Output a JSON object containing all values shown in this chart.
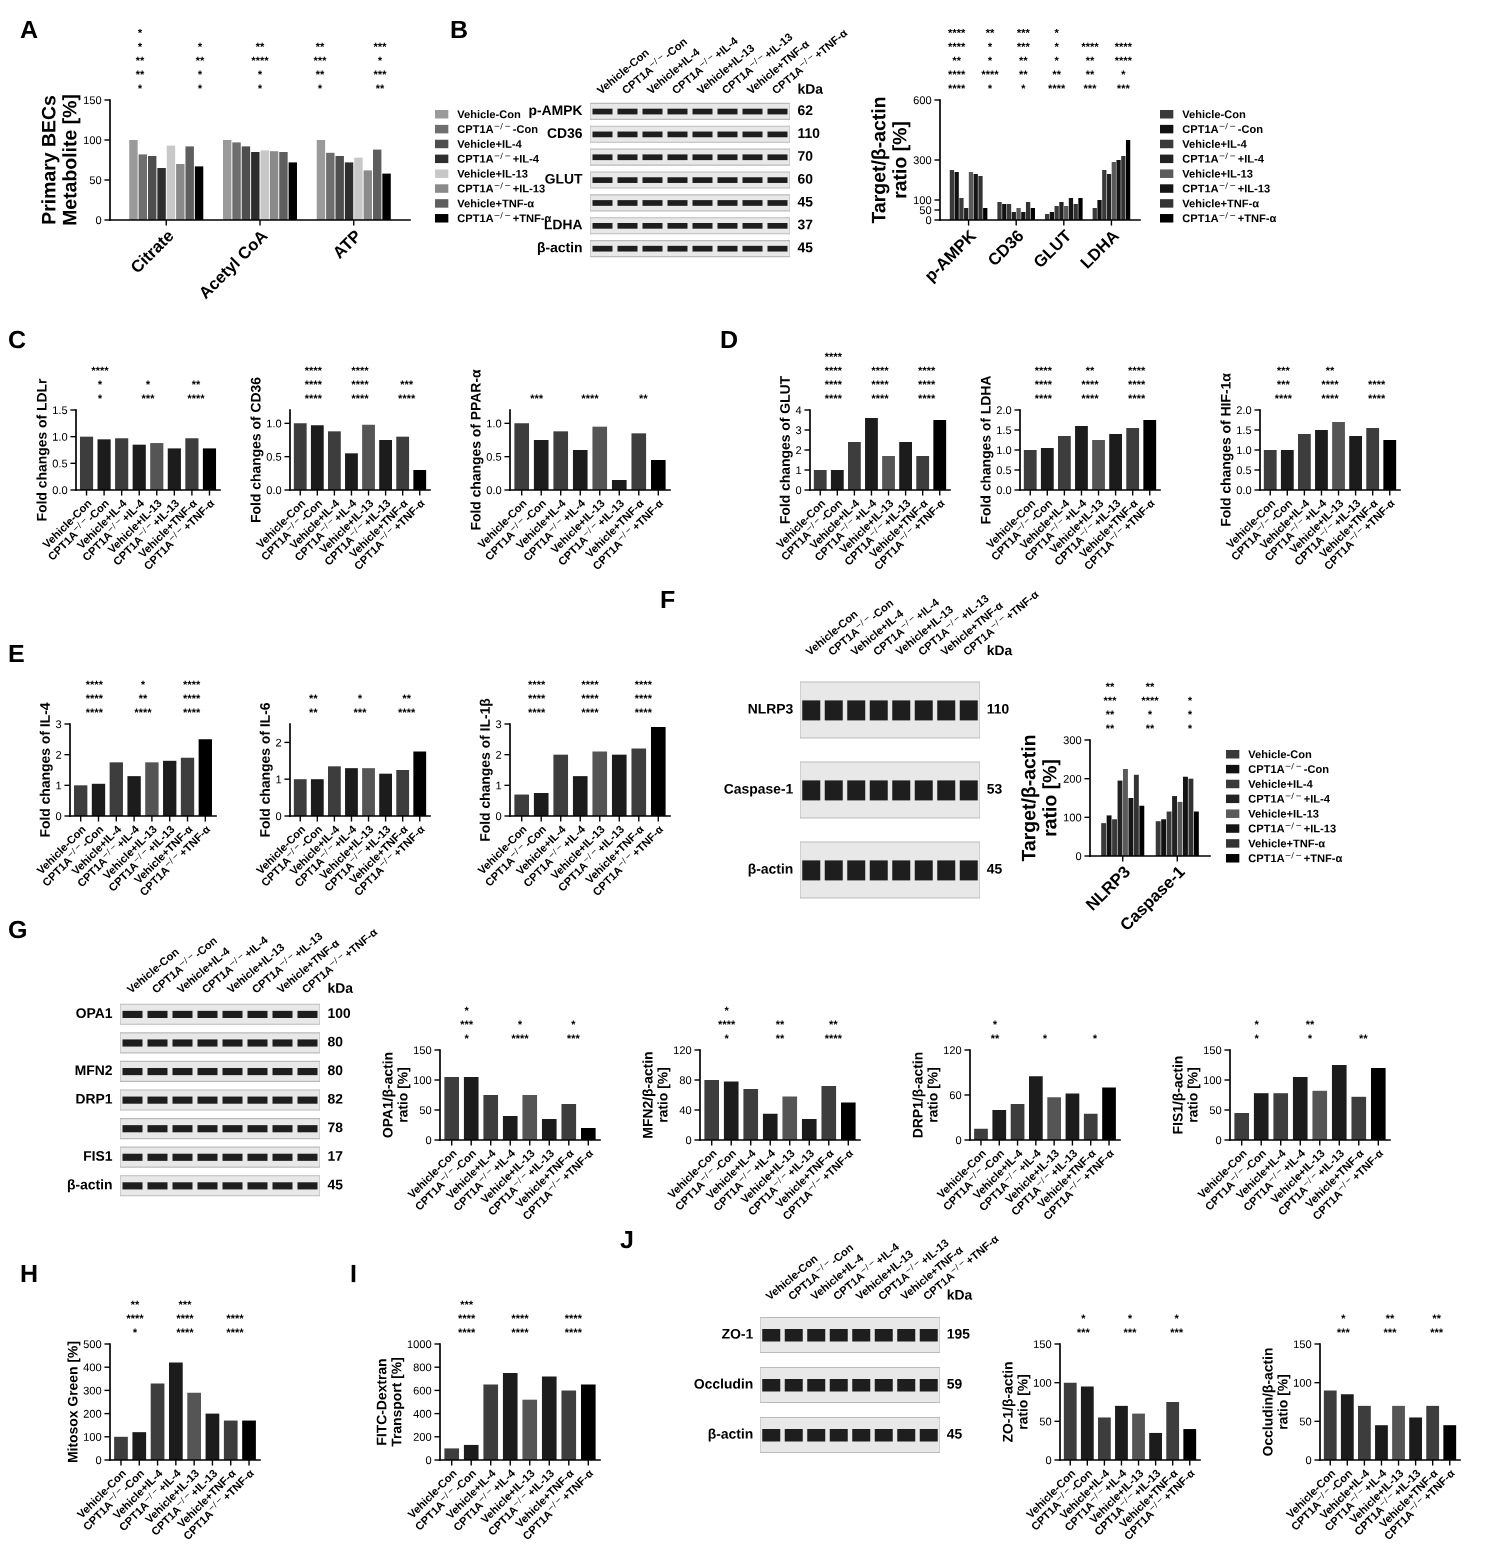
{
  "chart_data": [
    {
      "type": "bar",
      "title": "A",
      "ylabel": "Primary BECs\nMetabolite [%]",
      "categories": [
        "Citrate",
        "Acetyl CoA",
        "ATP"
      ],
      "ylim": [
        0,
        150
      ],
      "yticks": [
        0,
        50,
        100,
        150
      ],
      "legend": "right",
      "annotations": [
        "*",
        "*",
        "*",
        "*",
        "**",
        "**",
        "*",
        "*",
        "**",
        "***",
        "**",
        "**",
        "****",
        "***",
        "*",
        "*",
        "*",
        "**",
        "**",
        "***",
        "*"
      ],
      "series": [
        {
          "name": "Vehicle-Con",
          "color": "#9a9a9a",
          "values": [
            100,
            100,
            100
          ]
        },
        {
          "name": "CPT1A$^{−/−}$-Con",
          "color": "#6e6e6e",
          "values": [
            82,
            97,
            84
          ]
        },
        {
          "name": "Vehicle+IL-4",
          "color": "#4e4e4e",
          "values": [
            80,
            92,
            80
          ]
        },
        {
          "name": "CPT1A$^{−/−}$+IL-4",
          "color": "#2e2e2e",
          "values": [
            65,
            85,
            72
          ]
        },
        {
          "name": "Vehicle+IL-13",
          "color": "#c8c8c8",
          "values": [
            93,
            87,
            78
          ]
        },
        {
          "name": "CPT1A$^{−/−}$+IL-13",
          "color": "#8a8a8a",
          "values": [
            70,
            86,
            62
          ]
        },
        {
          "name": "Vehicle+TNF-α",
          "color": "#5e5e5e",
          "values": [
            92,
            85,
            88
          ]
        },
        {
          "name": "CPT1A$^{−/−}$+TNF-α",
          "color": "#000000",
          "values": [
            67,
            72,
            58
          ]
        }
      ]
    },
    {
      "type": "other",
      "title": "B",
      "categories": [
        "Vehicle-Con",
        "CPT1A$^{−/−}$-Con",
        "Vehicle+IL-4",
        "CPT1A$^{−/−}$+IL-4",
        "Vehicle+IL-13",
        "CPT1A$^{−/−}$+IL-13",
        "Vehicle+TNF-α",
        "CPT1A$^{−/−}$+TNF-α"
      ],
      "y_categories": [
        "p-AMPK",
        "CD36",
        null,
        "GLUT",
        null,
        "LDHA",
        "β-actin"
      ],
      "y2_categories": [
        "62",
        "110",
        "70",
        "60",
        "45",
        "37",
        "45"
      ],
      "annotations": [
        "kDa"
      ]
    },
    {
      "type": "bar",
      "ylabel": "Target/β-actin\nratio [%]",
      "categories": [
        "p-AMPK",
        "CD36",
        "GLUT",
        "LDHA"
      ],
      "ylim": [
        0,
        600
      ],
      "yticks": [
        0,
        50,
        100,
        300,
        600
      ],
      "legend": "right",
      "annotations": [
        "****",
        "*",
        "*",
        "****",
        "***",
        "***",
        "****",
        "****",
        "**",
        "**",
        "**",
        "*",
        "**",
        "*",
        "**",
        "*",
        "**",
        "****",
        "****",
        "*",
        "***",
        "*",
        "****",
        "****",
        "****",
        "**",
        "***",
        "*"
      ],
      "series": [
        {
          "name": "Vehicle-Con",
          "color": "#3a3a3a",
          "values": [
            250,
            90,
            30,
            60
          ]
        },
        {
          "name": "CPT1A$^{−/−}$-Con",
          "color": "#111111",
          "values": [
            240,
            80,
            40,
            100
          ]
        },
        {
          "name": "Vehicle+IL-4",
          "color": "#3a3a3a",
          "values": [
            110,
            80,
            70,
            250
          ]
        },
        {
          "name": "CPT1A$^{−/−}$+IL-4",
          "color": "#222222",
          "values": [
            60,
            40,
            90,
            230
          ]
        },
        {
          "name": "Vehicle+IL-13",
          "color": "#5a5a5a",
          "values": [
            240,
            60,
            70,
            290
          ]
        },
        {
          "name": "CPT1A$^{−/−}$+IL-13",
          "color": "#151515",
          "values": [
            230,
            40,
            110,
            300
          ]
        },
        {
          "name": "Vehicle+TNF-α",
          "color": "#333333",
          "values": [
            220,
            90,
            80,
            320
          ]
        },
        {
          "name": "CPT1A$^{−/−}$+TNF-α",
          "color": "#000000",
          "values": [
            60,
            60,
            110,
            400
          ]
        }
      ]
    },
    {
      "type": "bar",
      "title": "C",
      "ylabel": "Fold changes of LDLr",
      "categories": [
        "Vehicle-Con",
        "CPT1A$^{−/−}$-Con",
        "Vehicle+IL-4",
        "CPT1A$^{−/−}$+IL-4",
        "Vehicle+IL-13",
        "CPT1A$^{−/−}$+IL-13",
        "Vehicle+TNF-α",
        "CPT1A$^{−/−}$+TNF-α"
      ],
      "ylim": [
        0,
        1.5
      ],
      "yticks": [
        {
          "value": 0,
          "label": "0.0"
        },
        0.5,
        {
          "value": 1,
          "label": "1.0"
        },
        1.5
      ],
      "values": [
        1.0,
        0.95,
        0.97,
        0.85,
        0.88,
        0.78,
        0.97,
        0.78
      ],
      "colors": [
        "#3d3d3d",
        "#1c1c1c",
        "#3d3d3d",
        "#1c1c1c",
        "#555555",
        "#1c1c1c",
        "#3d3d3d",
        "#000000"
      ],
      "annotations": [
        "*",
        "***",
        "****",
        "*",
        "*",
        "**",
        "****"
      ]
    },
    {
      "type": "bar",
      "ylabel": "Fold changes of CD36",
      "categories": [
        "Vehicle-Con",
        "CPT1A$^{−/−}$-Con",
        "Vehicle+IL-4",
        "CPT1A$^{−/−}$+IL-4",
        "Vehicle+IL-13",
        "CPT1A$^{−/−}$+IL-13",
        "Vehicle+TNF-α",
        "CPT1A$^{−/−}$+TNF-α"
      ],
      "ylim": [
        0,
        1.2
      ],
      "yticks": [
        {
          "value": 0,
          "label": "0.0"
        },
        0.5,
        {
          "value": 1,
          "label": "1.0"
        }
      ],
      "values": [
        1.0,
        0.97,
        0.88,
        0.55,
        0.98,
        0.75,
        0.8,
        0.3
      ],
      "colors": [
        "#3d3d3d",
        "#1c1c1c",
        "#3d3d3d",
        "#1c1c1c",
        "#555555",
        "#1c1c1c",
        "#3d3d3d",
        "#000000"
      ],
      "annotations": [
        "****",
        "****",
        "****",
        "****",
        "****",
        "***",
        "****",
        "****"
      ]
    },
    {
      "type": "bar",
      "ylabel": "Fold changes of PPAR-α",
      "categories": [
        "Vehicle-Con",
        "CPT1A$^{−/−}$-Con",
        "Vehicle+IL-4",
        "CPT1A$^{−/−}$+IL-4",
        "Vehicle+IL-13",
        "CPT1A$^{−/−}$+IL-13",
        "Vehicle+TNF-α",
        "CPT1A$^{−/−}$+TNF-α"
      ],
      "ylim": [
        0,
        1.2
      ],
      "yticks": [
        {
          "value": 0,
          "label": "0.0"
        },
        0.5,
        {
          "value": 1,
          "label": "1.0"
        }
      ],
      "values": [
        1.0,
        0.75,
        0.88,
        0.6,
        0.95,
        0.15,
        0.85,
        0.45
      ],
      "colors": [
        "#3d3d3d",
        "#1c1c1c",
        "#3d3d3d",
        "#1c1c1c",
        "#555555",
        "#1c1c1c",
        "#3d3d3d",
        "#000000"
      ],
      "annotations": [
        "***",
        "****",
        "**"
      ]
    },
    {
      "type": "bar",
      "title": "D",
      "ylabel": "Fold changes of GLUT",
      "categories": [
        "Vehicle-Con",
        "CPT1A$^{−/−}$-Con",
        "Vehicle+IL-4",
        "CPT1A$^{−/−}$+IL-4",
        "Vehicle+IL-13",
        "CPT1A$^{−/−}$+IL-13",
        "Vehicle+TNF-α",
        "CPT1A$^{−/−}$+TNF-α"
      ],
      "ylim": [
        0,
        4
      ],
      "yticks": [
        0,
        1,
        2,
        3,
        4
      ],
      "values": [
        1.0,
        1.0,
        2.4,
        3.6,
        1.7,
        2.4,
        1.7,
        3.5
      ],
      "colors": [
        "#3d3d3d",
        "#1c1c1c",
        "#3d3d3d",
        "#1c1c1c",
        "#555555",
        "#1c1c1c",
        "#3d3d3d",
        "#000000"
      ],
      "annotations": [
        "****",
        "****",
        "****",
        "****",
        "****",
        "****",
        "****",
        "****",
        "****",
        "****"
      ]
    },
    {
      "type": "bar",
      "ylabel": "Fold changes of LDHA",
      "categories": [
        "Vehicle-Con",
        "CPT1A$^{−/−}$-Con",
        "Vehicle+IL-4",
        "CPT1A$^{−/−}$+IL-4",
        "Vehicle+IL-13",
        "CPT1A$^{−/−}$+IL-13",
        "Vehicle+TNF-α",
        "CPT1A$^{−/−}$+TNF-α"
      ],
      "ylim": [
        0,
        2.0
      ],
      "yticks": [
        {
          "value": 0,
          "label": "0.0"
        },
        0.5,
        {
          "value": 1,
          "label": "1.0"
        },
        1.5,
        {
          "value": 2,
          "label": "2.0"
        }
      ],
      "values": [
        1.0,
        1.05,
        1.35,
        1.6,
        1.25,
        1.4,
        1.55,
        1.75
      ],
      "colors": [
        "#3d3d3d",
        "#1c1c1c",
        "#3d3d3d",
        "#1c1c1c",
        "#555555",
        "#1c1c1c",
        "#3d3d3d",
        "#000000"
      ],
      "annotations": [
        "****",
        "****",
        "****",
        "****",
        "****",
        "****",
        "****",
        "**",
        "****"
      ]
    },
    {
      "type": "bar",
      "ylabel": "Fold changes of HIF-1α",
      "categories": [
        "Vehicle-Con",
        "CPT1A$^{−/−}$-Con",
        "Vehicle+IL-4",
        "CPT1A$^{−/−}$+IL-4",
        "Vehicle+IL-13",
        "CPT1A$^{−/−}$+IL-13",
        "Vehicle+TNF-α",
        "CPT1A$^{−/−}$+TNF-α"
      ],
      "ylim": [
        0,
        2.0
      ],
      "yticks": [
        {
          "value": 0,
          "label": "0.0"
        },
        0.5,
        {
          "value": 1,
          "label": "1.0"
        },
        1.5,
        {
          "value": 2,
          "label": "2.0"
        }
      ],
      "values": [
        1.0,
        1.0,
        1.4,
        1.5,
        1.7,
        1.35,
        1.55,
        1.25
      ],
      "colors": [
        "#3d3d3d",
        "#1c1c1c",
        "#3d3d3d",
        "#1c1c1c",
        "#555555",
        "#1c1c1c",
        "#3d3d3d",
        "#000000"
      ],
      "annotations": [
        "****",
        "****",
        "****",
        "***",
        "****",
        "****",
        "***",
        "**"
      ]
    },
    {
      "type": "bar",
      "title": "E",
      "ylabel": "Fold changes of IL-4",
      "categories": [
        "Vehicle-Con",
        "CPT1A$^{−/−}$-Con",
        "Vehicle+IL-4",
        "CPT1A$^{−/−}$+IL-4",
        "Vehicle+IL-13",
        "CPT1A$^{−/−}$+IL-13",
        "Vehicle+TNF-α",
        "CPT1A$^{−/−}$+TNF-α"
      ],
      "ylim": [
        0,
        3
      ],
      "yticks": [
        0,
        1,
        2,
        3
      ],
      "values": [
        1.0,
        1.05,
        1.75,
        1.3,
        1.75,
        1.8,
        1.9,
        2.5
      ],
      "colors": [
        "#3d3d3d",
        "#1c1c1c",
        "#3d3d3d",
        "#1c1c1c",
        "#555555",
        "#1c1c1c",
        "#3d3d3d",
        "#000000"
      ],
      "annotations": [
        "****",
        "****",
        "****",
        "****",
        "**",
        "****",
        "****",
        "*",
        "****"
      ]
    },
    {
      "type": "bar",
      "ylabel": "Fold changes of IL-6",
      "categories": [
        "Vehicle-Con",
        "CPT1A$^{−/−}$-Con",
        "Vehicle+IL-4",
        "CPT1A$^{−/−}$+IL-4",
        "Vehicle+IL-13",
        "CPT1A$^{−/−}$+IL-13",
        "Vehicle+TNF-α",
        "CPT1A$^{−/−}$+TNF-α"
      ],
      "ylim": [
        0,
        2.5
      ],
      "yticks": [
        0,
        1,
        2
      ],
      "values": [
        1.0,
        1.0,
        1.35,
        1.3,
        1.3,
        1.15,
        1.25,
        1.75
      ],
      "colors": [
        "#3d3d3d",
        "#1c1c1c",
        "#3d3d3d",
        "#1c1c1c",
        "#555555",
        "#1c1c1c",
        "#3d3d3d",
        "#000000"
      ],
      "annotations": [
        "**",
        "***",
        "****",
        "**",
        "*",
        "**"
      ]
    },
    {
      "type": "bar",
      "ylabel": "Fold changes of IL-1β",
      "categories": [
        "Vehicle-Con",
        "CPT1A$^{−/−}$-Con",
        "Vehicle+IL-4",
        "CPT1A$^{−/−}$+IL-4",
        "Vehicle+IL-13",
        "CPT1A$^{−/−}$+IL-13",
        "Vehicle+TNF-α",
        "CPT1A$^{−/−}$+TNF-α"
      ],
      "ylim": [
        0,
        3
      ],
      "yticks": [
        0,
        1,
        2,
        3
      ],
      "values": [
        0.7,
        0.75,
        2.0,
        1.3,
        2.1,
        2.0,
        2.2,
        2.9
      ],
      "colors": [
        "#3d3d3d",
        "#1c1c1c",
        "#3d3d3d",
        "#1c1c1c",
        "#555555",
        "#1c1c1c",
        "#3d3d3d",
        "#000000"
      ],
      "annotations": [
        "****",
        "****",
        "****",
        "****",
        "****",
        "****",
        "****",
        "****",
        "****"
      ]
    },
    {
      "type": "other",
      "title": "F",
      "categories": [
        "Vehicle-Con",
        "CPT1A$^{−/−}$-Con",
        "Vehicle+IL-4",
        "CPT1A$^{−/−}$+IL-4",
        "Vehicle+IL-13",
        "CPT1A$^{−/−}$+IL-13",
        "Vehicle+TNF-α",
        "CPT1A$^{−/−}$+TNF-α"
      ],
      "y_categories": [
        "NLRP3",
        "Caspase-1",
        "β-actin"
      ],
      "y2_categories": [
        "110",
        "53",
        "45"
      ],
      "annotations": [
        "kDa"
      ]
    },
    {
      "type": "bar",
      "ylabel": "Target/β-actin\nratio [%]",
      "categories": [
        "NLRP3",
        "Caspase-1"
      ],
      "ylim": [
        0,
        300
      ],
      "yticks": [
        0,
        100,
        200,
        300
      ],
      "legend": "right",
      "annotations": [
        "**",
        "**",
        "*",
        "**",
        "*",
        "*",
        "***",
        "****",
        "*",
        "**",
        "**"
      ],
      "series": [
        {
          "name": "Vehicle-Con",
          "color": "#3a3a3a",
          "values": [
            85,
            90
          ]
        },
        {
          "name": "CPT1A$^{−/−}$-Con",
          "color": "#111111",
          "values": [
            105,
            95
          ]
        },
        {
          "name": "Vehicle+IL-4",
          "color": "#3a3a3a",
          "values": [
            95,
            115
          ]
        },
        {
          "name": "CPT1A$^{−/−}$+IL-4",
          "color": "#222222",
          "values": [
            195,
            155
          ]
        },
        {
          "name": "Vehicle+IL-13",
          "color": "#5a5a5a",
          "values": [
            225,
            140
          ]
        },
        {
          "name": "CPT1A$^{−/−}$+IL-13",
          "color": "#151515",
          "values": [
            150,
            205
          ]
        },
        {
          "name": "Vehicle+TNF-α",
          "color": "#333333",
          "values": [
            210,
            200
          ]
        },
        {
          "name": "CPT1A$^{−/−}$+TNF-α",
          "color": "#000000",
          "values": [
            130,
            115
          ]
        }
      ]
    },
    {
      "type": "other",
      "title": "G",
      "categories": [
        "Vehicle-Con",
        "CPT1A$^{−/−}$-Con",
        "Vehicle+IL-4",
        "CPT1A$^{−/−}$+IL-4",
        "Vehicle+IL-13",
        "CPT1A$^{−/−}$+IL-13",
        "Vehicle+TNF-α",
        "CPT1A$^{−/−}$+TNF-α"
      ],
      "y_categories": [
        "OPA1",
        null,
        "MFN2",
        "DRP1",
        null,
        "FIS1",
        "β-actin"
      ],
      "y2_categories": [
        "100",
        "80",
        "80",
        "82",
        "78",
        "17",
        "45"
      ],
      "annotations": [
        "kDa"
      ]
    },
    {
      "type": "bar",
      "ylabel": "OPA1/β-actin\nratio [%]",
      "categories": [
        "Vehicle-Con",
        "CPT1A$^{−/−}$-Con",
        "Vehicle+IL-4",
        "CPT1A$^{−/−}$+IL-4",
        "Vehicle+IL-13",
        "CPT1A$^{−/−}$+IL-13",
        "Vehicle+TNF-α",
        "CPT1A$^{−/−}$+TNF-α"
      ],
      "ylim": [
        0,
        150
      ],
      "yticks": [
        0,
        50,
        100,
        150
      ],
      "values": [
        105,
        105,
        75,
        40,
        75,
        35,
        60,
        20
      ],
      "colors": [
        "#3d3d3d",
        "#1c1c1c",
        "#3d3d3d",
        "#1c1c1c",
        "#555555",
        "#1c1c1c",
        "#3d3d3d",
        "#000000"
      ],
      "annotations": [
        "*",
        "****",
        "***",
        "***",
        "*",
        "*",
        "*"
      ]
    },
    {
      "type": "bar",
      "ylabel": "MFN2/β-actin\nratio [%]",
      "categories": [
        "Vehicle-Con",
        "CPT1A$^{−/−}$-Con",
        "Vehicle+IL-4",
        "CPT1A$^{−/−}$+IL-4",
        "Vehicle+IL-13",
        "CPT1A$^{−/−}$+IL-13",
        "Vehicle+TNF-α",
        "CPT1A$^{−/−}$+TNF-α"
      ],
      "ylim": [
        0,
        120
      ],
      "yticks": [
        0,
        40,
        80,
        120
      ],
      "values": [
        80,
        78,
        68,
        35,
        58,
        28,
        72,
        50
      ],
      "colors": [
        "#3d3d3d",
        "#1c1c1c",
        "#3d3d3d",
        "#1c1c1c",
        "#555555",
        "#1c1c1c",
        "#3d3d3d",
        "#000000"
      ],
      "annotations": [
        "*",
        "**",
        "****",
        "****",
        "**",
        "**",
        "*"
      ]
    },
    {
      "type": "bar",
      "ylabel": "DRP1/β-actin\nratio [%]",
      "categories": [
        "Vehicle-Con",
        "CPT1A$^{−/−}$-Con",
        "Vehicle+IL-4",
        "CPT1A$^{−/−}$+IL-4",
        "Vehicle+IL-13",
        "CPT1A$^{−/−}$+IL-13",
        "Vehicle+TNF-α",
        "CPT1A$^{−/−}$+TNF-α"
      ],
      "ylim": [
        0,
        120
      ],
      "yticks": [
        0,
        60,
        120
      ],
      "values": [
        15,
        40,
        48,
        85,
        57,
        62,
        35,
        70
      ],
      "colors": [
        "#3d3d3d",
        "#1c1c1c",
        "#3d3d3d",
        "#1c1c1c",
        "#555555",
        "#1c1c1c",
        "#3d3d3d",
        "#000000"
      ],
      "annotations": [
        "**",
        "*",
        "*",
        "*"
      ]
    },
    {
      "type": "bar",
      "ylabel": "FIS1/β-actin\nratio [%]",
      "categories": [
        "Vehicle-Con",
        "CPT1A$^{−/−}$-Con",
        "Vehicle+IL-4",
        "CPT1A$^{−/−}$+IL-4",
        "Vehicle+IL-13",
        "CPT1A$^{−/−}$+IL-13",
        "Vehicle+TNF-α",
        "CPT1A$^{−/−}$+TNF-α"
      ],
      "ylim": [
        0,
        150
      ],
      "yticks": [
        0,
        50,
        100,
        150
      ],
      "values": [
        45,
        78,
        78,
        105,
        82,
        125,
        72,
        120
      ],
      "colors": [
        "#3d3d3d",
        "#1c1c1c",
        "#3d3d3d",
        "#1c1c1c",
        "#555555",
        "#1c1c1c",
        "#3d3d3d",
        "#000000"
      ],
      "annotations": [
        "*",
        "*",
        "**",
        "*",
        "**"
      ]
    },
    {
      "type": "bar",
      "title": "H",
      "ylabel": "Mitosox Green [%]",
      "categories": [
        "Vehicle-Con",
        "CPT1A$^{−/−}$-Con",
        "Vehicle+IL-4",
        "CPT1A$^{−/−}$+IL-4",
        "Vehicle+IL-13",
        "CPT1A$^{−/−}$+IL-13",
        "Vehicle+TNF-α",
        "CPT1A$^{−/−}$+TNF-α"
      ],
      "ylim": [
        0,
        500
      ],
      "yticks": [
        0,
        100,
        200,
        300,
        400,
        500
      ],
      "values": [
        100,
        120,
        330,
        420,
        290,
        200,
        170,
        170
      ],
      "colors": [
        "#3d3d3d",
        "#1c1c1c",
        "#3d3d3d",
        "#1c1c1c",
        "#555555",
        "#1c1c1c",
        "#3d3d3d",
        "#000000"
      ],
      "annotations": [
        "*",
        "****",
        "****",
        "****",
        "****",
        "****",
        "**",
        "***"
      ]
    },
    {
      "type": "bar",
      "title": "I",
      "ylabel": "FITC-Dextran\nTransport [%]",
      "categories": [
        "Vehicle-Con",
        "CPT1A$^{−/−}$-Con",
        "Vehicle+IL-4",
        "CPT1A$^{−/−}$+IL-4",
        "Vehicle+IL-13",
        "CPT1A$^{−/−}$+IL-13",
        "Vehicle+TNF-α",
        "CPT1A$^{−/−}$+TNF-α"
      ],
      "ylim": [
        0,
        1000
      ],
      "yticks": [
        0,
        200,
        400,
        600,
        800,
        1000
      ],
      "values": [
        100,
        130,
        650,
        750,
        520,
        720,
        600,
        650
      ],
      "colors": [
        "#3d3d3d",
        "#1c1c1c",
        "#3d3d3d",
        "#1c1c1c",
        "#555555",
        "#1c1c1c",
        "#3d3d3d",
        "#000000"
      ],
      "annotations": [
        "****",
        "****",
        "****",
        "****",
        "****",
        "****",
        "***"
      ]
    },
    {
      "type": "other",
      "title": "J",
      "categories": [
        "Vehicle-Con",
        "CPT1A$^{−/−}$-Con",
        "Vehicle+IL-4",
        "CPT1A$^{−/−}$+IL-4",
        "Vehicle+IL-13",
        "CPT1A$^{−/−}$+IL-13",
        "Vehicle+TNF-α",
        "CPT1A$^{−/−}$+TNF-α"
      ],
      "y_categories": [
        "ZO-1",
        "Occludin",
        "β-actin"
      ],
      "y2_categories": [
        "195",
        "59",
        "45"
      ],
      "annotations": [
        "kDa"
      ]
    },
    {
      "type": "bar",
      "ylabel": "ZO-1/β-actin\nratio [%]",
      "categories": [
        "Vehicle-Con",
        "CPT1A$^{−/−}$-Con",
        "Vehicle+IL-4",
        "CPT1A$^{−/−}$+IL-4",
        "Vehicle+IL-13",
        "CPT1A$^{−/−}$+IL-13",
        "Vehicle+TNF-α",
        "CPT1A$^{−/−}$+TNF-α"
      ],
      "ylim": [
        0,
        150
      ],
      "yticks": [
        0,
        50,
        100,
        150
      ],
      "values": [
        100,
        95,
        55,
        70,
        60,
        35,
        75,
        40
      ],
      "colors": [
        "#3d3d3d",
        "#1c1c1c",
        "#3d3d3d",
        "#1c1c1c",
        "#555555",
        "#1c1c1c",
        "#3d3d3d",
        "#000000"
      ],
      "annotations": [
        "***",
        "***",
        "***",
        "*",
        "*",
        "*"
      ]
    },
    {
      "type": "bar",
      "ylabel": "Occludin/β-actin\nratio [%]",
      "categories": [
        "Vehicle-Con",
        "CPT1A$^{−/−}$-Con",
        "Vehicle+IL-4",
        "CPT1A$^{−/−}$+IL-4",
        "Vehicle+IL-13",
        "CPT1A$^{−/−}$+IL-13",
        "Vehicle+TNF-α",
        "CPT1A$^{−/−}$+TNF-α"
      ],
      "ylim": [
        0,
        150
      ],
      "yticks": [
        0,
        50,
        100,
        150
      ],
      "values": [
        90,
        85,
        70,
        45,
        70,
        55,
        70,
        45
      ],
      "colors": [
        "#3d3d3d",
        "#1c1c1c",
        "#3d3d3d",
        "#1c1c1c",
        "#555555",
        "#1c1c1c",
        "#3d3d3d",
        "#000000"
      ],
      "annotations": [
        "***",
        "***",
        "***",
        "*",
        "**",
        "**"
      ]
    }
  ]
}
